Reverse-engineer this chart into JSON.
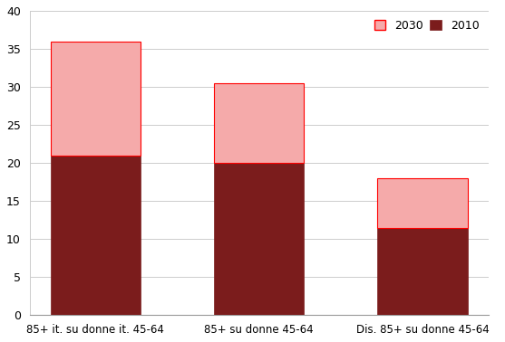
{
  "categories": [
    "85+ it. su donne it. 45-64",
    "85+ su donne 45-64",
    "Dis. 85+ su donne 45-64"
  ],
  "values_2010": [
    21,
    20,
    11.5
  ],
  "values_2030_increment": [
    15,
    10.5,
    6.5
  ],
  "color_2010": "#7B1C1C",
  "color_2030": "#F5AAAA",
  "bar_edge_color_2030": "#FF0000",
  "bar_edge_color_2010": "#7B1C1C",
  "bar_width": 0.55,
  "ylim": [
    0,
    40
  ],
  "yticks": [
    0,
    5,
    10,
    15,
    20,
    25,
    30,
    35,
    40
  ],
  "legend_labels": [
    "2030",
    "2010"
  ],
  "legend_colors": [
    "#F5AAAA",
    "#7B1C1C"
  ],
  "legend_edge_colors": [
    "#FF0000",
    "#7B1C1C"
  ],
  "background_color": "#FFFFFF",
  "grid_color": "#CCCCCC",
  "figsize": [
    5.57,
    3.78
  ],
  "dpi": 100
}
